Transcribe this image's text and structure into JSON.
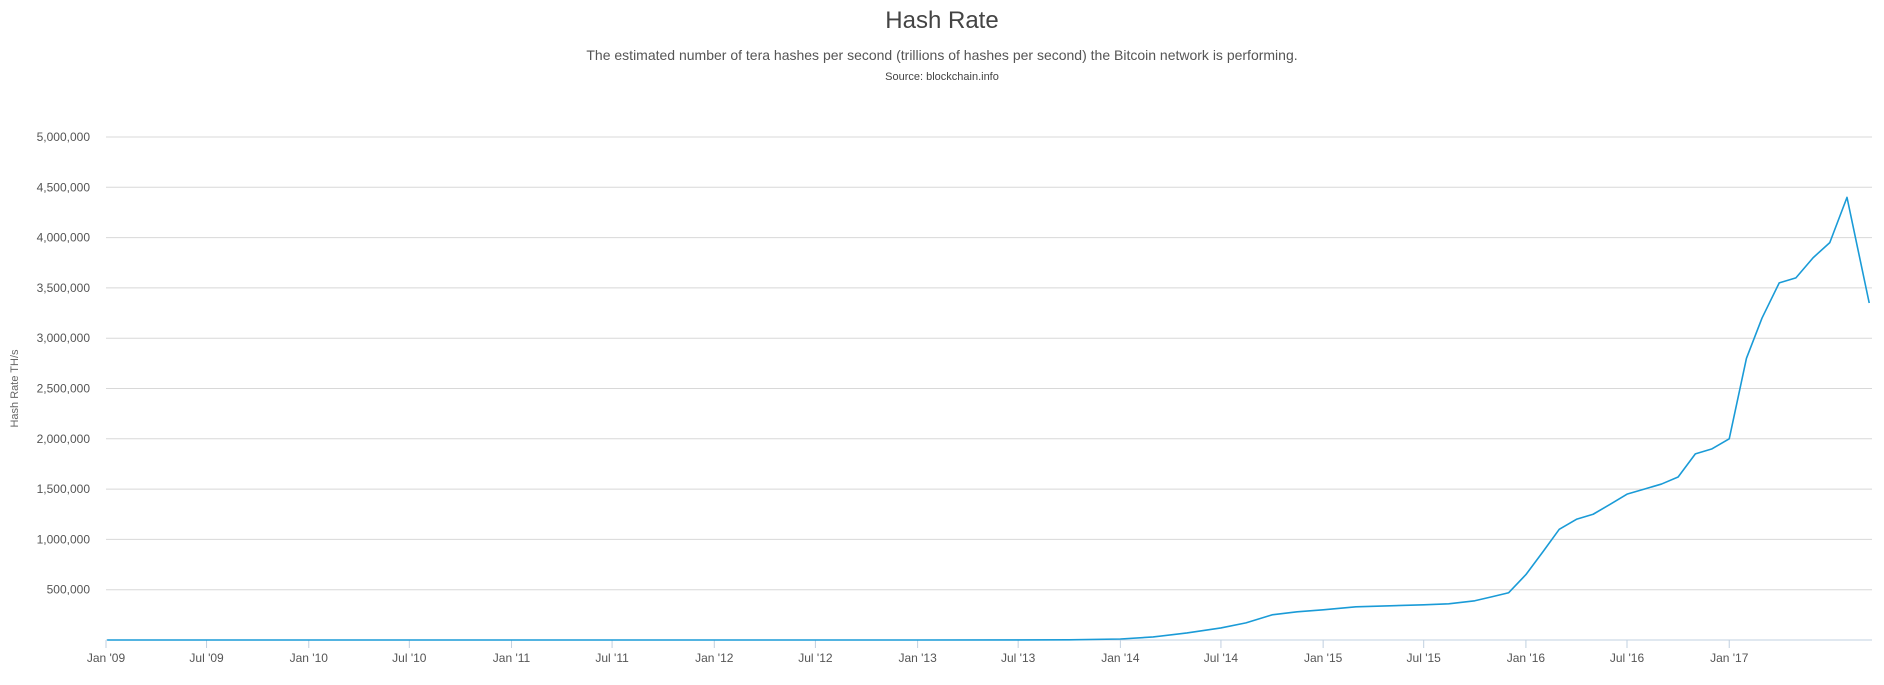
{
  "header": {
    "title": "Hash Rate",
    "subtitle": "The estimated number of tera hashes per second (trillions of hashes per second) the Bitcoin network is performing.",
    "source": "Source: blockchain.info"
  },
  "colors": {
    "series": "#1a9bd7",
    "grid": "#d8d8d8",
    "axis": "#c0d0e0"
  },
  "chart_data": {
    "type": "line",
    "title": "Hash Rate",
    "xlabel": "",
    "ylabel": "Hash Rate TH/s",
    "grid": true,
    "legend": "none",
    "x_range": [
      "2009-01-01",
      "2017-09-15"
    ],
    "ylim": [
      0,
      5000000
    ],
    "y_ticks": [
      500000,
      1000000,
      1500000,
      2000000,
      2500000,
      3000000,
      3500000,
      4000000,
      4500000,
      5000000
    ],
    "y_tick_labels": [
      "500,000",
      "1,000,000",
      "1,500,000",
      "2,000,000",
      "2,500,000",
      "3,000,000",
      "3,500,000",
      "4,000,000",
      "4,500,000",
      "5,000,000"
    ],
    "x_ticks": [
      "2009-01-01",
      "2009-07-01",
      "2010-01-01",
      "2010-07-01",
      "2011-01-01",
      "2011-07-01",
      "2012-01-01",
      "2012-07-01",
      "2013-01-01",
      "2013-07-01",
      "2014-01-01",
      "2014-07-01",
      "2015-01-01",
      "2015-07-01",
      "2016-01-01",
      "2016-07-01",
      "2017-01-01"
    ],
    "x_tick_labels": [
      "Jan '09",
      "Jul '09",
      "Jan '10",
      "Jul '10",
      "Jan '11",
      "Jul '11",
      "Jan '12",
      "Jul '12",
      "Jan '13",
      "Jul '13",
      "Jan '14",
      "Jul '14",
      "Jan '15",
      "Jul '15",
      "Jan '16",
      "Jul '16",
      "Jan '17"
    ],
    "series": [
      {
        "x": [
          "2009-01-03",
          "2010-01-01",
          "2011-01-01",
          "2012-01-01",
          "2013-01-01",
          "2013-07-01",
          "2013-10-01",
          "2014-01-01",
          "2014-03-01",
          "2014-05-01",
          "2014-07-01",
          "2014-08-15",
          "2014-10-01",
          "2014-11-15",
          "2015-01-01",
          "2015-03-01",
          "2015-05-01",
          "2015-07-01",
          "2015-08-15",
          "2015-10-01",
          "2015-11-01",
          "2015-12-01",
          "2016-01-01",
          "2016-02-01",
          "2016-03-01",
          "2016-04-01",
          "2016-05-01",
          "2016-06-01",
          "2016-07-01",
          "2016-08-01",
          "2016-09-01",
          "2016-10-01",
          "2016-11-01",
          "2016-12-01",
          "2017-01-01",
          "2017-02-01",
          "2017-03-01",
          "2017-04-01",
          "2017-05-01",
          "2017-06-01",
          "2017-07-01",
          "2017-08-01",
          "2017-08-20",
          "2017-09-10"
        ],
        "values": [
          0,
          0,
          0,
          10,
          20,
          200,
          2000,
          10000,
          30000,
          70000,
          120000,
          170000,
          250000,
          280000,
          300000,
          330000,
          340000,
          350000,
          360000,
          390000,
          430000,
          470000,
          650000,
          880000,
          1100000,
          1200000,
          1250000,
          1350000,
          1450000,
          1500000,
          1550000,
          1620000,
          1850000,
          1900000,
          2000000,
          2800000,
          3200000,
          3550000,
          3600000,
          3800000,
          3950000,
          4400000,
          3900000,
          3350000
        ]
      }
    ]
  }
}
